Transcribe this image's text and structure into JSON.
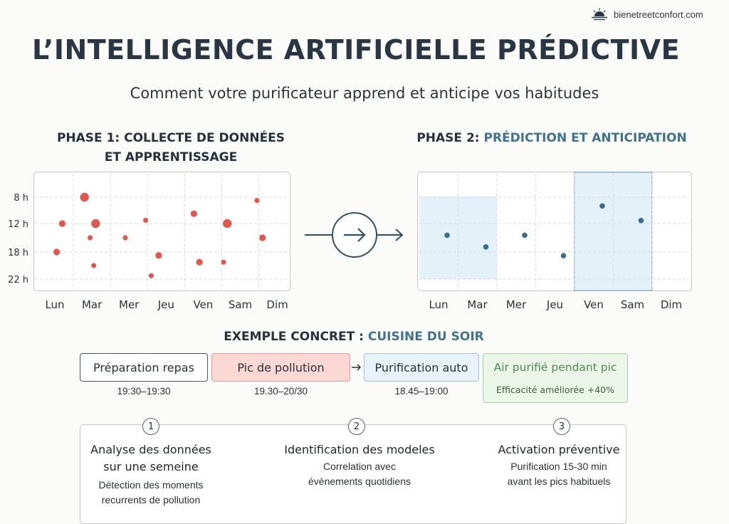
{
  "brand": {
    "text": "bienetreetconfort.com",
    "icon": "sun-horizon-icon"
  },
  "title": "L’INTELLIGENCE ARTIFICIELLE PRÉDICTIVE",
  "subtitle": "Comment votre purificateur apprend et anticipe vos habitudes",
  "phase1": {
    "title_line1": "PHASE 1: COLLECTE DE DONNÉES",
    "title_line2": "ET APPRENTISSAGE"
  },
  "phase2": {
    "title_prefix": "PHASE 2: ",
    "title_highlight": "PRÉDICTION ET ANTICIPATION"
  },
  "colors": {
    "pollution": "#e0574f",
    "prediction": "#3a6e8c",
    "highlight": "#e4f1f8",
    "accent": "#3f7290"
  },
  "chart_data": [
    {
      "type": "scatter",
      "days": [
        "Lun",
        "Mar",
        "Mer",
        "Jeu",
        "Ven",
        "Sam",
        "Dim"
      ],
      "hours": [
        "8 h",
        "12 h",
        "18 h",
        "22 h"
      ],
      "points": [
        {
          "day": 0.2,
          "hour": 12,
          "size": 2
        },
        {
          "day": 0.05,
          "hour": 18,
          "size": 2
        },
        {
          "day": 0.8,
          "hour": 8,
          "size": 3
        },
        {
          "day": 1.1,
          "hour": 12,
          "size": 3
        },
        {
          "day": 0.95,
          "hour": 15,
          "size": 1
        },
        {
          "day": 1.05,
          "hour": 20,
          "size": 1
        },
        {
          "day": 1.9,
          "hour": 15,
          "size": 1
        },
        {
          "day": 2.45,
          "hour": 11.5,
          "size": 1
        },
        {
          "day": 2.8,
          "hour": 18.5,
          "size": 2
        },
        {
          "day": 2.6,
          "hour": 21.5,
          "size": 1
        },
        {
          "day": 3.75,
          "hour": 10.5,
          "size": 2
        },
        {
          "day": 3.9,
          "hour": 19.5,
          "size": 2
        },
        {
          "day": 4.65,
          "hour": 12,
          "size": 3
        },
        {
          "day": 4.55,
          "hour": 19.5,
          "size": 1
        },
        {
          "day": 5.45,
          "hour": 8.5,
          "size": 1
        },
        {
          "day": 5.6,
          "hour": 15,
          "size": 2
        }
      ]
    },
    {
      "type": "scatter",
      "days": [
        "Lun",
        "Mar",
        "Mer",
        "Jeu",
        "Ven",
        "Sam",
        "Dim"
      ],
      "highlighted_days": [
        "Lun",
        "Mar",
        "Ven",
        "Sam"
      ],
      "points": [
        {
          "day": "Lun",
          "hour": 14.5
        },
        {
          "day": "Mar",
          "hour": 16.5
        },
        {
          "day": "Mer",
          "hour": 14.5
        },
        {
          "day": "Jeu",
          "hour": 18
        },
        {
          "day": "Ven",
          "hour": 9.5
        },
        {
          "day": "Sam",
          "hour": 12
        }
      ]
    }
  ],
  "example": {
    "title_prefix": "EXEMPLE CONCRET : ",
    "title_highlight": "CUISINE DU SOIR",
    "steps": [
      {
        "label": "Préparation repas",
        "time": "19:30–19:30"
      },
      {
        "label": "Pic de pollution",
        "time": "19.30–20/30"
      },
      {
        "label": "Purification auto",
        "time": "18.45–19:00"
      }
    ],
    "result": {
      "label": "Air purifié pendant pic",
      "detail": "Efficacité améliorée +40%"
    }
  },
  "process": [
    {
      "num": "1",
      "title_line1": "Analyse des données",
      "title_line2": "sur une semeine",
      "desc_line1": "Détection des moments",
      "desc_line2": "recurrents de pollution"
    },
    {
      "num": "2",
      "title_line1": "Identification des modeles",
      "title_line2": "",
      "desc_line1": "Correlation avec",
      "desc_line2": "évènements quotidiens"
    },
    {
      "num": "3",
      "title_line1": "Activation préventive",
      "title_line2": "",
      "desc_line1": "Purification 15-30 min",
      "desc_line2": "avant les pics habituels"
    }
  ]
}
